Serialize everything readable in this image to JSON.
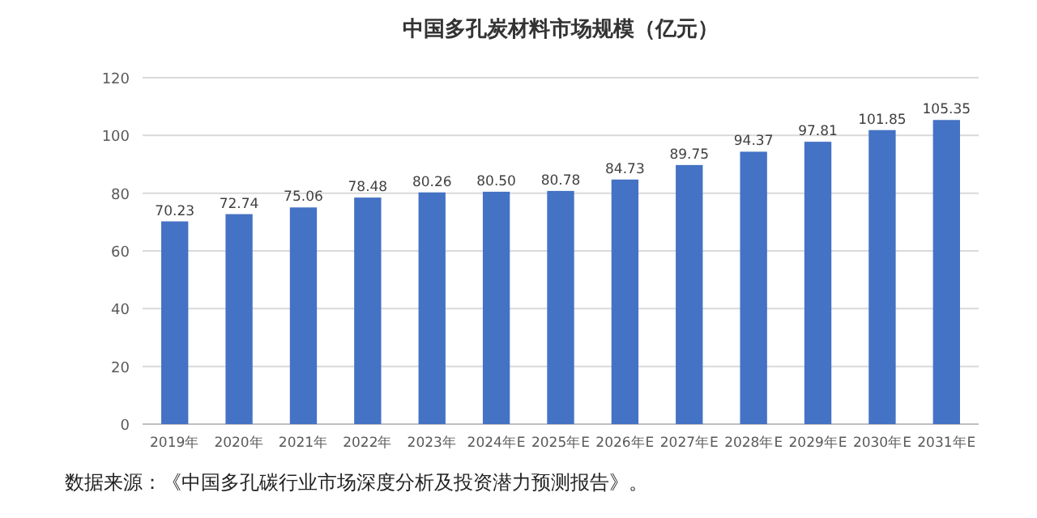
{
  "chart_data": {
    "type": "bar",
    "title": "中国多孔炭材料市场规模（亿元）",
    "categories": [
      "2019年",
      "2020年",
      "2021年",
      "2022年",
      "2023年",
      "2024年E",
      "2025年E",
      "2026年E",
      "2027年E",
      "2028年E",
      "2029年E",
      "2030年E",
      "2031年E"
    ],
    "values": [
      70.23,
      72.74,
      75.06,
      78.48,
      80.26,
      80.5,
      80.78,
      84.73,
      89.75,
      94.37,
      97.81,
      101.85,
      105.35
    ],
    "color": "#4472c4",
    "ylim": [
      0,
      120
    ],
    "yticks": [
      0,
      20,
      40,
      60,
      80,
      100,
      120
    ],
    "value_labels": [
      "70.23",
      "72.74",
      "75.06",
      "78.48",
      "80.26",
      "80.50",
      "80.78",
      "84.73",
      "89.75",
      "94.37",
      "97.81",
      "101.85",
      "105.35"
    ],
    "grid": "y",
    "annotations": [
      "数据来源：《中国多孔碳行业市场深度分析及投资潜力预测报告》。"
    ]
  }
}
